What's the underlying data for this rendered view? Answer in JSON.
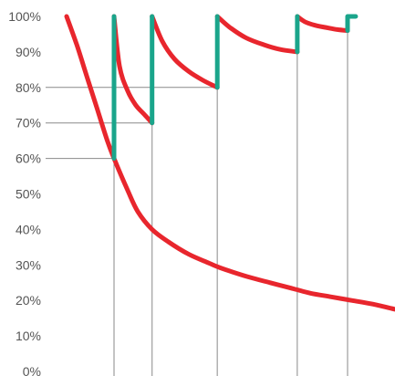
{
  "chart_data": {
    "type": "line",
    "title": "",
    "xlabel": "",
    "ylabel": "",
    "y_ticks": [
      "0%",
      "10%",
      "20%",
      "30%",
      "40%",
      "50%",
      "60%",
      "70%",
      "80%",
      "90%",
      "100%"
    ],
    "ylim": [
      0,
      100
    ],
    "xlim": [
      0,
      16.13
    ],
    "grid": false,
    "vertical_markers": [
      2.33,
      4.2,
      7.4,
      11.33,
      13.8
    ],
    "horizontal_guides": [
      {
        "x": 2.33,
        "y": 60
      },
      {
        "x": 4.2,
        "y": 70
      },
      {
        "x": 7.4,
        "y": 80
      }
    ],
    "series": [
      {
        "role": "decay",
        "color": "#e8262d",
        "x": [
          0,
          0.5,
          1,
          1.5,
          2,
          2.33,
          3,
          3.5,
          4.2,
          5,
          6,
          7,
          7.4,
          8,
          9,
          10,
          11,
          11.33,
          12,
          13,
          14,
          15,
          16.13
        ],
        "values": [
          100,
          92,
          83,
          74,
          65,
          60,
          51,
          45,
          40,
          36.5,
          33,
          30.5,
          29.5,
          28.3,
          26.5,
          25,
          23.5,
          23,
          22,
          21,
          20,
          19,
          17.5
        ]
      },
      {
        "role": "decay-after-dose",
        "color": "#e8262d",
        "x": [
          2.33,
          2.6,
          3,
          3.4,
          3.8,
          4.2
        ],
        "values": [
          100,
          86,
          79,
          75,
          72.5,
          70
        ]
      },
      {
        "role": "decay-after-dose",
        "color": "#e8262d",
        "x": [
          4.2,
          4.7,
          5.3,
          6,
          6.7,
          7.4
        ],
        "values": [
          100,
          93,
          88,
          84.5,
          82,
          80
        ]
      },
      {
        "role": "decay-after-dose",
        "color": "#e8262d",
        "x": [
          7.4,
          8,
          8.8,
          9.7,
          10.5,
          11.33
        ],
        "values": [
          100,
          97,
          94,
          92,
          90.7,
          90
        ]
      },
      {
        "role": "decay-after-dose",
        "color": "#e8262d",
        "x": [
          11.33,
          11.7,
          12.2,
          12.8,
          13.3,
          13.8
        ],
        "values": [
          100,
          98.5,
          97.5,
          96.8,
          96.3,
          96
        ]
      },
      {
        "role": "dose-jump",
        "color": "#1aa58b",
        "x": [
          2.33,
          2.33
        ],
        "values": [
          60,
          100
        ]
      },
      {
        "role": "dose-jump",
        "color": "#1aa58b",
        "x": [
          4.2,
          4.2
        ],
        "values": [
          70,
          100
        ]
      },
      {
        "role": "dose-jump",
        "color": "#1aa58b",
        "x": [
          7.4,
          7.4
        ],
        "values": [
          80,
          100
        ]
      },
      {
        "role": "dose-jump",
        "color": "#1aa58b",
        "x": [
          11.33,
          11.33
        ],
        "values": [
          90,
          100
        ]
      },
      {
        "role": "dose-jump",
        "color": "#1aa58b",
        "x": [
          13.8,
          13.8,
          14.2
        ],
        "values": [
          96,
          100,
          100
        ]
      }
    ],
    "colors": {
      "decay": "#e8262d",
      "dose": "#1aa58b",
      "guide": "#8a8a8a",
      "tick_text": "#555555"
    }
  }
}
